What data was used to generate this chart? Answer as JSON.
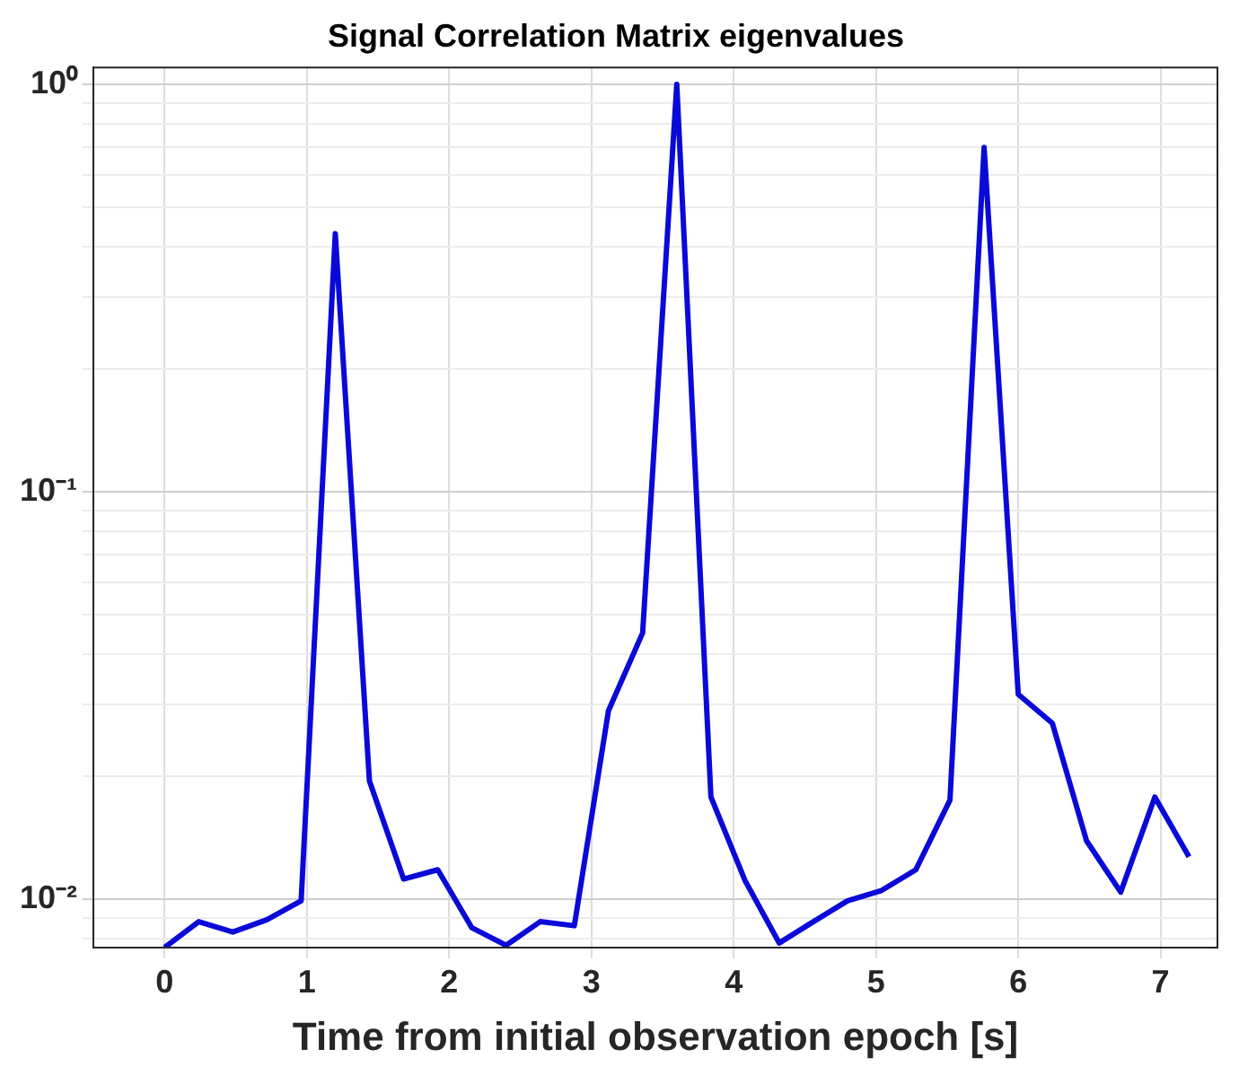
{
  "chart_data": {
    "type": "line",
    "title": "Signal Correlation Matrix eigenvalues",
    "xlabel": "Time from initial observation epoch [s]",
    "x": [
      0,
      0.24,
      0.48,
      0.72,
      0.96,
      1.2,
      1.44,
      1.68,
      1.92,
      2.16,
      2.4,
      2.64,
      2.88,
      3.12,
      3.36,
      3.6,
      3.84,
      4.08,
      4.32,
      4.56,
      4.8,
      5.04,
      5.28,
      5.52,
      5.76,
      6.0,
      6.24,
      6.48,
      6.72,
      6.96,
      7.2
    ],
    "series": [
      {
        "color": "#0a0ad8",
        "values": [
          0.0076,
          0.0088,
          0.0083,
          0.0089,
          0.0099,
          0.43,
          0.0195,
          0.0112,
          0.0118,
          0.0085,
          0.0077,
          0.0088,
          0.0086,
          0.029,
          0.045,
          1.0,
          0.0178,
          0.0111,
          0.0078,
          0.0088,
          0.0099,
          0.0105,
          0.0118,
          0.0175,
          0.7,
          0.0318,
          0.027,
          0.0139,
          0.0104,
          0.0178,
          0.0127
        ]
      }
    ],
    "xlim": [
      -0.5,
      7.4
    ],
    "xticks": [
      0,
      1,
      2,
      3,
      4,
      5,
      6,
      7
    ],
    "ylim": [
      0.0076,
      1.1
    ],
    "yticks": [
      {
        "value": 0.008,
        "label": null
      },
      {
        "value": 0.009,
        "label": null
      },
      {
        "value": 0.01,
        "label": "10⁻²"
      },
      {
        "value": 0.02,
        "label": null
      },
      {
        "value": 0.03,
        "label": null
      },
      {
        "value": 0.04,
        "label": null
      },
      {
        "value": 0.05,
        "label": null
      },
      {
        "value": 0.06,
        "label": null
      },
      {
        "value": 0.07,
        "label": null
      },
      {
        "value": 0.08,
        "label": null
      },
      {
        "value": 0.09,
        "label": null
      },
      {
        "value": 0.1,
        "label": "10⁻¹"
      },
      {
        "value": 0.2,
        "label": null
      },
      {
        "value": 0.3,
        "label": null
      },
      {
        "value": 0.4,
        "label": null
      },
      {
        "value": 0.5,
        "label": null
      },
      {
        "value": 0.6,
        "label": null
      },
      {
        "value": 0.7,
        "label": null
      },
      {
        "value": 0.8,
        "label": null
      },
      {
        "value": 0.9,
        "label": null
      },
      {
        "value": 1,
        "label": "10⁰"
      }
    ],
    "log": "y",
    "grid": true,
    "legend": false,
    "marker": "none",
    "line_style": "solid"
  }
}
